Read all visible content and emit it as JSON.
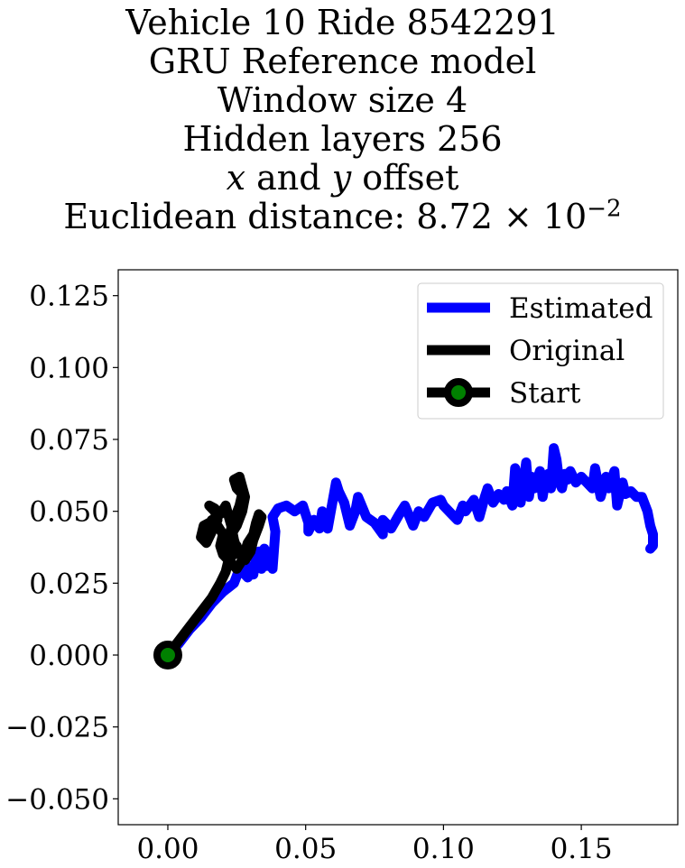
{
  "title": {
    "line1": "Vehicle 10 Ride 8542291",
    "line2": "GRU Reference model",
    "line3": "Window size 4",
    "line4": "Hidden layers 256",
    "line5_x": "x",
    "line5_and": " and ",
    "line5_y": "y",
    "line5_offset": " offset",
    "line6_prefix": "Euclidean distance: 8.72 × 10",
    "line6_exponent": "−2"
  },
  "chart_data": {
    "type": "line",
    "xlim": [
      -0.018,
      0.185
    ],
    "ylim": [
      -0.059,
      0.134
    ],
    "xticks": [
      0.0,
      0.05,
      0.1,
      0.15
    ],
    "xtick_labels": [
      "0.00",
      "0.05",
      "0.10",
      "0.15"
    ],
    "yticks": [
      -0.05,
      -0.025,
      0.0,
      0.025,
      0.05,
      0.075,
      0.1,
      0.125
    ],
    "ytick_labels": [
      "−0.050",
      "−0.025",
      "0.000",
      "0.025",
      "0.050",
      "0.075",
      "0.100",
      "0.125"
    ],
    "grid": false,
    "legend_position": "top-right",
    "series": [
      {
        "name": "Estimated",
        "color": "#0000ff",
        "x": [
          0.0,
          0.004,
          0.008,
          0.012,
          0.016,
          0.02,
          0.024,
          0.026,
          0.029,
          0.028,
          0.031,
          0.032,
          0.034,
          0.033,
          0.036,
          0.035,
          0.038,
          0.039,
          0.038,
          0.04,
          0.043,
          0.046,
          0.049,
          0.051,
          0.051,
          0.053,
          0.055,
          0.056,
          0.058,
          0.061,
          0.062,
          0.064,
          0.066,
          0.068,
          0.069,
          0.072,
          0.075,
          0.078,
          0.078,
          0.081,
          0.084,
          0.086,
          0.089,
          0.091,
          0.093,
          0.096,
          0.099,
          0.1,
          0.103,
          0.105,
          0.107,
          0.108,
          0.111,
          0.113,
          0.115,
          0.116,
          0.118,
          0.12,
          0.122,
          0.123,
          0.125,
          0.126,
          0.128,
          0.129,
          0.13,
          0.131,
          0.132,
          0.133,
          0.135,
          0.136,
          0.137,
          0.138,
          0.139,
          0.14,
          0.141,
          0.142,
          0.143,
          0.144,
          0.145,
          0.146,
          0.148,
          0.15,
          0.152,
          0.154,
          0.155,
          0.157,
          0.159,
          0.16,
          0.162,
          0.163,
          0.165,
          0.166,
          0.168,
          0.17,
          0.172,
          0.174,
          0.175,
          0.176,
          0.176,
          0.175
        ],
        "y": [
          0.0,
          0.004,
          0.009,
          0.013,
          0.018,
          0.022,
          0.025,
          0.03,
          0.027,
          0.032,
          0.028,
          0.034,
          0.03,
          0.036,
          0.031,
          0.037,
          0.03,
          0.043,
          0.048,
          0.051,
          0.052,
          0.05,
          0.052,
          0.046,
          0.043,
          0.047,
          0.044,
          0.05,
          0.044,
          0.06,
          0.057,
          0.053,
          0.045,
          0.05,
          0.055,
          0.048,
          0.046,
          0.042,
          0.047,
          0.044,
          0.049,
          0.052,
          0.045,
          0.05,
          0.048,
          0.053,
          0.054,
          0.052,
          0.049,
          0.047,
          0.052,
          0.05,
          0.054,
          0.048,
          0.055,
          0.058,
          0.053,
          0.056,
          0.054,
          0.057,
          0.052,
          0.065,
          0.053,
          0.06,
          0.067,
          0.055,
          0.062,
          0.058,
          0.064,
          0.055,
          0.061,
          0.063,
          0.058,
          0.072,
          0.068,
          0.06,
          0.058,
          0.063,
          0.061,
          0.064,
          0.06,
          0.062,
          0.06,
          0.058,
          0.065,
          0.055,
          0.062,
          0.058,
          0.064,
          0.052,
          0.06,
          0.056,
          0.057,
          0.055,
          0.055,
          0.05,
          0.045,
          0.042,
          0.038,
          0.037
        ]
      },
      {
        "name": "Original",
        "color": "#000000",
        "x": [
          0.0,
          0.004,
          0.008,
          0.012,
          0.016,
          0.019,
          0.021,
          0.022,
          0.02,
          0.019,
          0.02,
          0.018,
          0.016,
          0.017,
          0.015,
          0.013,
          0.012,
          0.014,
          0.016,
          0.018,
          0.017,
          0.015,
          0.017,
          0.019,
          0.021,
          0.023,
          0.024,
          0.025,
          0.023,
          0.022,
          0.024,
          0.026,
          0.027,
          0.025,
          0.024,
          0.026,
          0.028,
          0.027,
          0.025,
          0.023,
          0.022,
          0.021,
          0.023,
          0.025,
          0.027,
          0.028,
          0.029,
          0.031,
          0.032,
          0.033,
          0.034,
          0.033,
          0.031,
          0.03,
          0.028,
          0.026,
          0.025
        ],
        "y": [
          0.0,
          0.005,
          0.01,
          0.015,
          0.02,
          0.025,
          0.029,
          0.033,
          0.035,
          0.038,
          0.042,
          0.045,
          0.047,
          0.044,
          0.046,
          0.045,
          0.041,
          0.039,
          0.043,
          0.047,
          0.05,
          0.052,
          0.051,
          0.049,
          0.052,
          0.045,
          0.04,
          0.037,
          0.034,
          0.041,
          0.047,
          0.052,
          0.056,
          0.058,
          0.061,
          0.062,
          0.055,
          0.05,
          0.045,
          0.042,
          0.038,
          0.035,
          0.032,
          0.03,
          0.033,
          0.036,
          0.039,
          0.042,
          0.046,
          0.049,
          0.048,
          0.045,
          0.04,
          0.036,
          0.033,
          0.035,
          0.038
        ]
      }
    ],
    "start_point": {
      "name": "Start",
      "x": 0.0,
      "y": 0.0,
      "outer_color": "#000000",
      "inner_color": "#008000"
    }
  }
}
